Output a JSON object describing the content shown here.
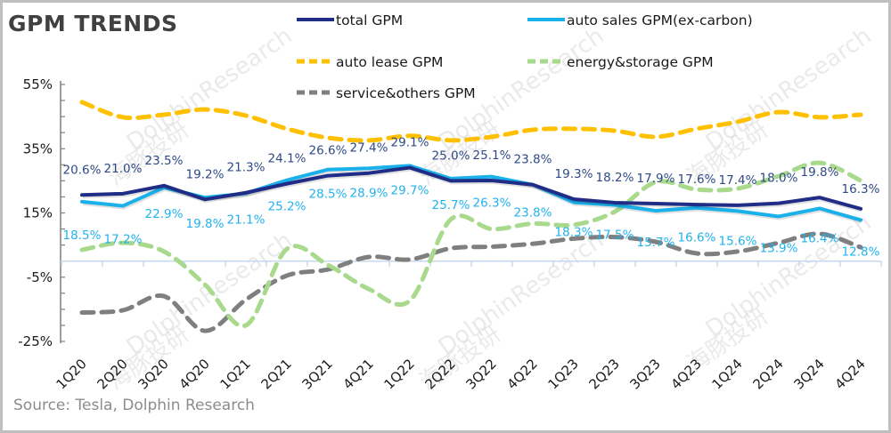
{
  "chart_data": {
    "type": "line",
    "title": "GPM TRENDS",
    "source": "Source: Tesla,  Dolphin Research",
    "xlabel": "",
    "ylabel": "",
    "ylim": [
      -25,
      55
    ],
    "yticks": [
      55,
      35,
      15,
      -5,
      -25
    ],
    "ytick_labels": [
      "55%",
      "35%",
      "15%",
      "-5%",
      "-25%"
    ],
    "grid": false,
    "legend_position": "top-right",
    "categories": [
      "1Q20",
      "2Q20",
      "3Q20",
      "4Q20",
      "1Q21",
      "2Q21",
      "3Q21",
      "4Q21",
      "1Q22",
      "2Q22",
      "3Q22",
      "4Q22",
      "1Q23",
      "2Q23",
      "3Q23",
      "4Q23",
      "1Q24",
      "2Q24",
      "3Q24",
      "4Q24"
    ],
    "series": [
      {
        "name": "total GPM",
        "style": "solid",
        "color": "#1f2d86",
        "label_color": "#2e4a86",
        "labeled": true,
        "label_pos": "above",
        "values": [
          20.6,
          21.0,
          23.5,
          19.2,
          21.3,
          24.1,
          26.6,
          27.4,
          29.1,
          25.0,
          25.1,
          23.8,
          19.3,
          18.2,
          17.9,
          17.6,
          17.4,
          18.0,
          19.8,
          16.3
        ],
        "labels": [
          "20.6%",
          "21.0%",
          "23.5%",
          "19.2%",
          "21.3%",
          "24.1%",
          "26.6%",
          "27.4%",
          "29.1%",
          "25.0%",
          "25.1%",
          "23.8%",
          "19.3%",
          "18.2%",
          "17.9%",
          "17.6%",
          "17.4%",
          "18.0%",
          "19.8%",
          "16.3%"
        ]
      },
      {
        "name": "auto sales GPM(ex-carbon)",
        "style": "solid",
        "color": "#1ab0ea",
        "label_color": "#22b2ee",
        "labeled": true,
        "label_pos": "below",
        "values": [
          18.5,
          17.2,
          22.9,
          19.8,
          21.1,
          25.2,
          28.5,
          28.9,
          29.7,
          25.7,
          26.3,
          23.8,
          18.3,
          17.5,
          15.7,
          16.6,
          15.6,
          13.9,
          16.4,
          12.8
        ],
        "labels": [
          "18.5%",
          "17.2%",
          "22.9%",
          "19.8%",
          "21.1%",
          "25.2%",
          "28.5%",
          "28.9%",
          "29.7%",
          "25.7%",
          "26.3%",
          "23.8%",
          "18.3%",
          "17.5%",
          "15.7%",
          "16.6%",
          "15.6%",
          "13.9%",
          "16.4%",
          "12.8%"
        ]
      },
      {
        "name": "auto lease GPM",
        "style": "dashed",
        "color": "#ffc000",
        "labeled": false,
        "values": [
          49.5,
          44.8,
          45.6,
          47.2,
          45.3,
          41.2,
          38.4,
          37.6,
          39.0,
          37.6,
          38.7,
          40.9,
          41.2,
          40.6,
          38.7,
          41.2,
          43.4,
          46.4,
          44.8,
          45.6
        ]
      },
      {
        "name": "energy&storage GPM",
        "style": "dashed",
        "color": "#a9d98c",
        "labeled": false,
        "values": [
          3.5,
          5.7,
          3.0,
          -7.3,
          -20.0,
          3.8,
          -1.2,
          -8.7,
          -12.3,
          13.0,
          10.0,
          11.7,
          11.3,
          15.4,
          24.6,
          22.3,
          22.6,
          26.5,
          30.6,
          25.1
        ]
      },
      {
        "name": "service&others GPM",
        "style": "dashed",
        "color": "#7f7f7f",
        "labeled": false,
        "values": [
          -16.0,
          -15.3,
          -10.9,
          -21.7,
          -12.0,
          -4.5,
          -2.6,
          1.3,
          0.5,
          4.0,
          4.5,
          5.4,
          7.0,
          7.5,
          6.0,
          2.4,
          3.0,
          5.7,
          8.5,
          4.3
        ]
      }
    ]
  },
  "watermark": {
    "text_en": "DolphinResearch",
    "text_cn": "海豚投研"
  }
}
